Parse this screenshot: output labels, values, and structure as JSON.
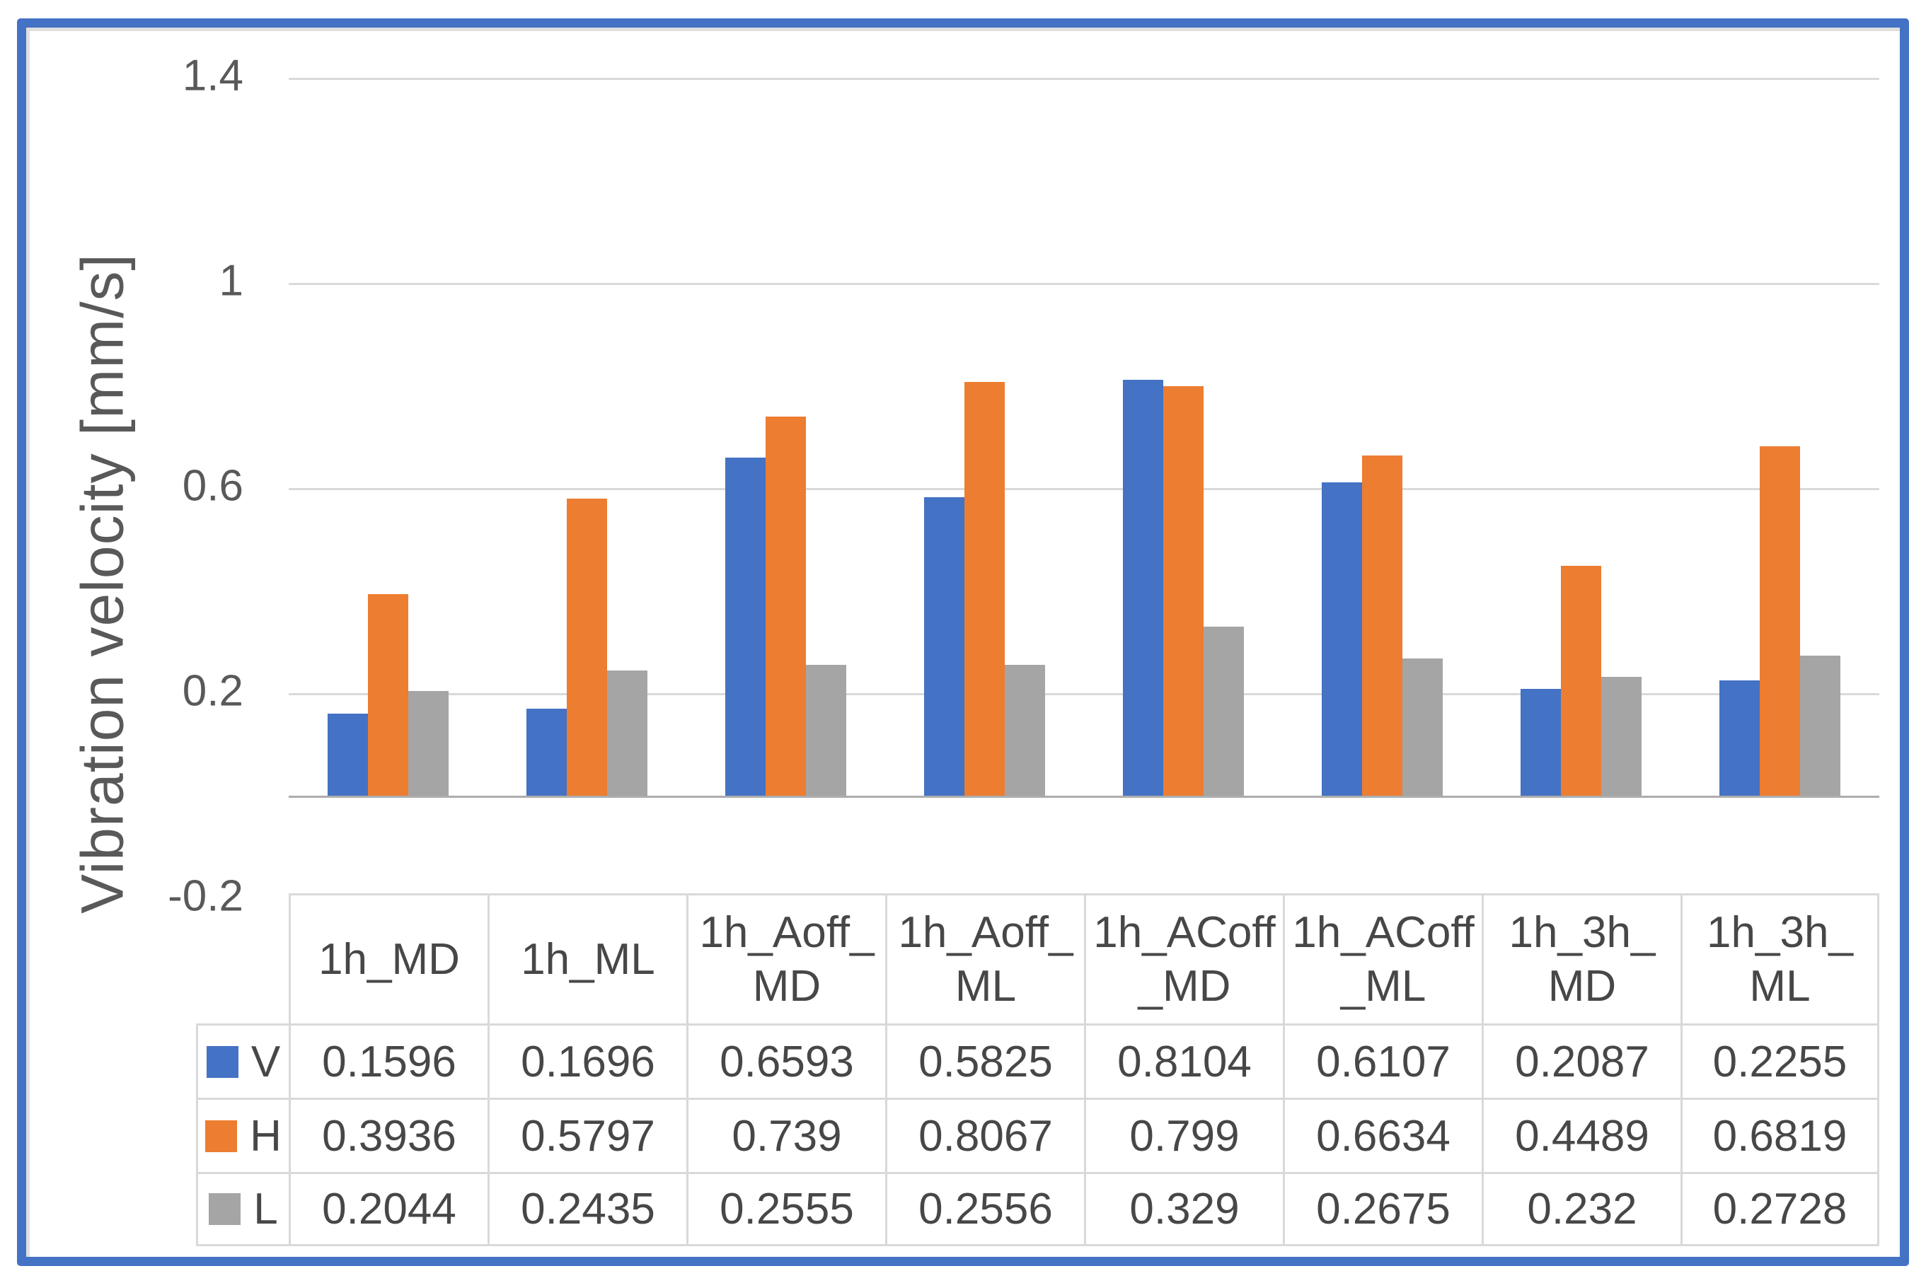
{
  "chart_data": {
    "type": "bar",
    "title": "",
    "xlabel": "",
    "ylabel": "Vibration velocity [mm/s]",
    "categories": [
      "1h_MD",
      "1h_ML",
      "1h_Aoff_MD",
      "1h_Aoff_ML",
      "1h_ACoff_MD",
      "1h_ACoff_ML",
      "1h_3h_MD",
      "1h_3h_ML"
    ],
    "series": [
      {
        "name": "V",
        "color": "#4472C4",
        "values": [
          0.1596,
          0.1696,
          0.6593,
          0.5825,
          0.8104,
          0.6107,
          0.2087,
          0.2255
        ]
      },
      {
        "name": "H",
        "color": "#ED7D31",
        "values": [
          0.3936,
          0.5797,
          0.739,
          0.8067,
          0.799,
          0.6634,
          0.4489,
          0.6819
        ]
      },
      {
        "name": "L",
        "color": "#A5A5A5",
        "values": [
          0.2044,
          0.2435,
          0.2555,
          0.2556,
          0.329,
          0.2675,
          0.232,
          0.2728
        ]
      }
    ],
    "ylim": [
      -0.2,
      1.4
    ],
    "y_ticks": [
      1.4,
      1,
      0.6,
      0.2,
      -0.2
    ],
    "y_tick_labels": [
      "1.4",
      "1",
      "0.6",
      "0.2",
      "-0.2"
    ],
    "y_gridlines": [
      1.4,
      1,
      0.6,
      0.2
    ],
    "grid": true,
    "legend_position": "data-table-left"
  },
  "table": {
    "headers_display": [
      "1h_MD",
      "1h_ML",
      "1h_Aoff_\nMD",
      "1h_Aoff_\nML",
      "1h_ACoff\n_MD",
      "1h_ACoff\n_ML",
      "1h_3h_\nMD",
      "1h_3h_\nML"
    ],
    "rows": [
      {
        "legend": "V",
        "swatch_color": "#4472C4",
        "cells": [
          "0.1596",
          "0.1696",
          "0.6593",
          "0.5825",
          "0.8104",
          "0.6107",
          "0.2087",
          "0.2255"
        ]
      },
      {
        "legend": "H",
        "swatch_color": "#ED7D31",
        "cells": [
          "0.3936",
          "0.5797",
          "0.739",
          "0.8067",
          "0.799",
          "0.6634",
          "0.4489",
          "0.6819"
        ]
      },
      {
        "legend": "L",
        "swatch_color": "#A5A5A5",
        "cells": [
          "0.2044",
          "0.2435",
          "0.2555",
          "0.2556",
          "0.329",
          "0.2675",
          "0.232",
          "0.2728"
        ]
      }
    ]
  },
  "colors": {
    "frame_border": "#4472C4",
    "gridline": "#D9D9D9",
    "axis_line": "#ADADAD",
    "axis_text": "#595959",
    "table_border": "#D9D9D9",
    "table_text": "#474747"
  }
}
